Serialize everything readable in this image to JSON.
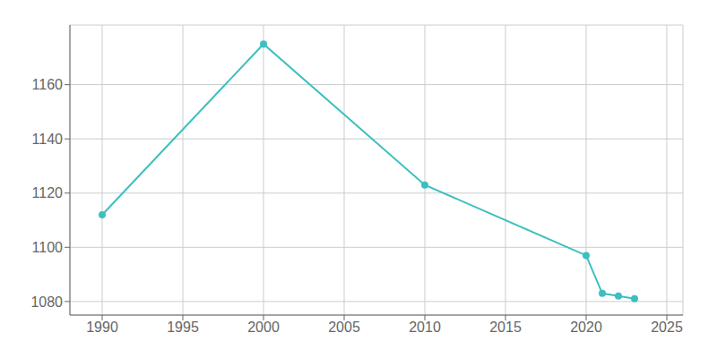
{
  "chart_data": {
    "type": "line",
    "x": [
      1990,
      2000,
      2010,
      2020,
      2021,
      2022,
      2023
    ],
    "values": [
      1112,
      1175,
      1123,
      1097,
      1083,
      1082,
      1081
    ],
    "color": "#3dbfc0",
    "marker": "circle",
    "xlim": [
      1988,
      2026
    ],
    "ylim": [
      1075,
      1182
    ],
    "xticks": [
      1990,
      1995,
      2000,
      2005,
      2010,
      2015,
      2020,
      2025
    ],
    "yticks": [
      1080,
      1100,
      1120,
      1140,
      1160
    ],
    "grid": true
  }
}
